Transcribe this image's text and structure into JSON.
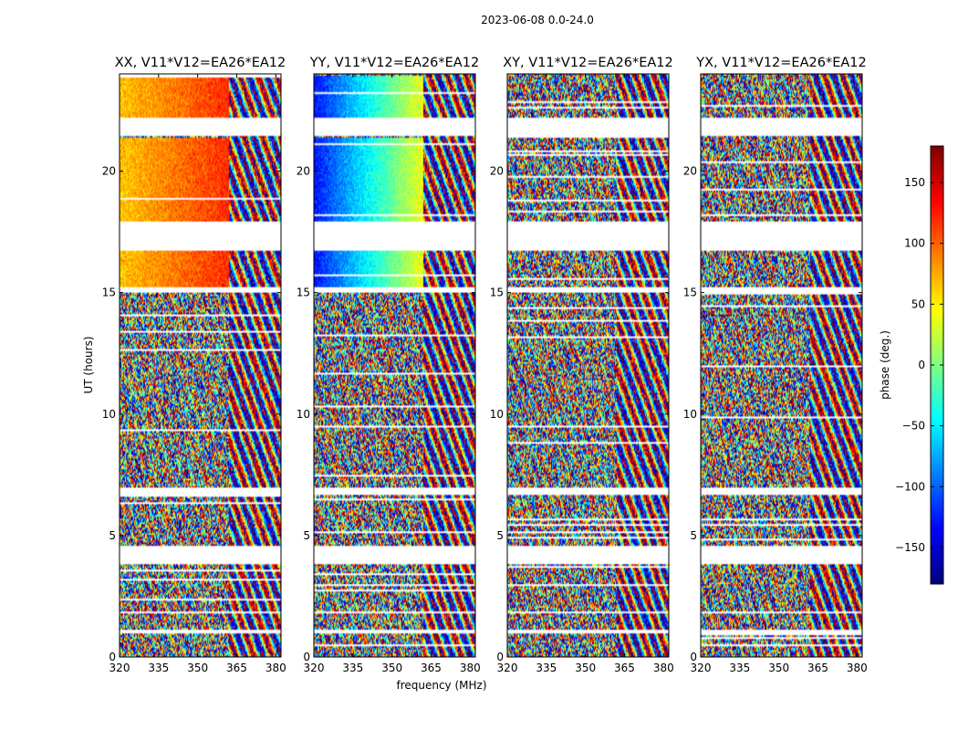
{
  "suptitle": "2023-06-08 0.0-24.0",
  "chart_data": {
    "type": "heatmap",
    "xlabel": "frequency (MHz)",
    "ylabel": "UT (hours)",
    "xlim": [
      320,
      382
    ],
    "ylim": [
      0,
      24
    ],
    "xticks": [
      "320",
      "335",
      "350",
      "365",
      "380"
    ],
    "yticks": [
      "0",
      "5",
      "10",
      "15",
      "20"
    ],
    "grid": false,
    "colormap": "jet",
    "colorbar": {
      "label": "phase (deg.)",
      "range": [
        -180,
        180
      ],
      "ticks": [
        "150",
        "100",
        "50",
        "0",
        "−50",
        "−100",
        "−150"
      ]
    },
    "panels": [
      {
        "title": "XX, V11*V12=EA26*EA12",
        "polarization": "XX",
        "coherent_phase_deg": 65,
        "phase_slope_deg": 55
      },
      {
        "title": "YY, V11*V12=EA26*EA12",
        "polarization": "YY",
        "coherent_phase_deg": -130,
        "phase_slope_deg": 170
      },
      {
        "title": "XY, V11*V12=EA26*EA12",
        "polarization": "XY",
        "coherent_phase_deg": null
      },
      {
        "title": "YX, V11*V12=EA26*EA12",
        "polarization": "YX",
        "coherent_phase_deg": null
      }
    ],
    "coherent_ut_ranges": [
      [
        15.0,
        16.8
      ],
      [
        17.9,
        21.4
      ],
      [
        22.2,
        23.9
      ]
    ],
    "flagged_ut_ranges": [
      [
        1.0,
        1.15
      ],
      [
        1.8,
        1.9
      ],
      [
        3.8,
        4.6
      ],
      [
        6.7,
        7.0
      ],
      [
        15.0,
        15.2
      ],
      [
        16.75,
        17.9
      ],
      [
        21.45,
        22.2
      ]
    ]
  }
}
